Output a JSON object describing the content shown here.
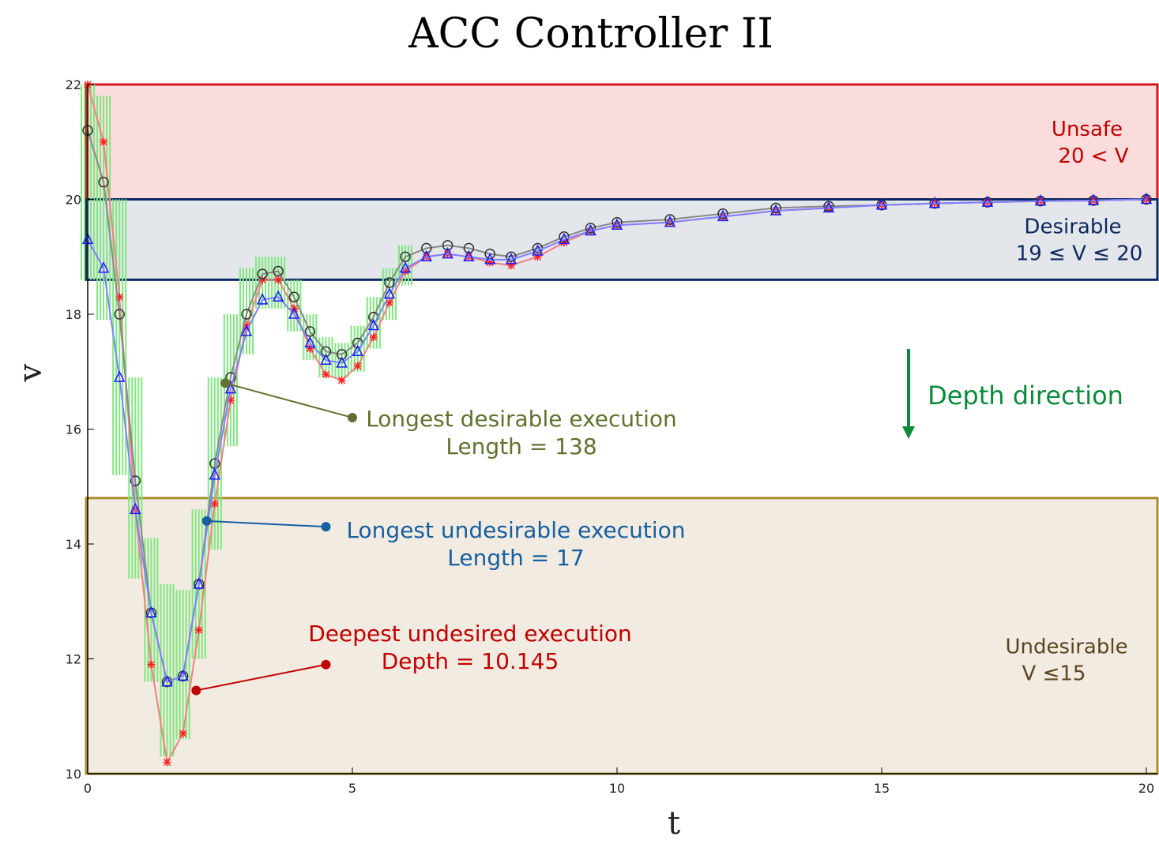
{
  "chart_data": {
    "type": "line",
    "title": "ACC Controller II",
    "xlabel": "t",
    "ylabel": "v",
    "xlim": [
      0,
      20
    ],
    "ylim": [
      10,
      22
    ],
    "x_ticks": [
      0,
      5,
      10,
      15,
      20
    ],
    "y_ticks": [
      10,
      12,
      14,
      16,
      18,
      20,
      22
    ],
    "grid": false,
    "regions": [
      {
        "name": "unsafe",
        "label": "Unsafe",
        "condition": "20 <  V",
        "y_range": [
          20,
          22
        ],
        "fill": "#f9dcdb",
        "border": "#d8141e",
        "text_color": "#c00000"
      },
      {
        "name": "desirable",
        "label": "Desirable",
        "condition": "19 ≤ V  ≤  20",
        "y_range": [
          18.6,
          20
        ],
        "fill": "#e3e6eb",
        "border": "#0b2a63",
        "text_color": "#10285e"
      },
      {
        "name": "undesirable",
        "label": "Undesirable",
        "condition": "V  ≤15",
        "y_range": [
          10,
          14.8
        ],
        "fill": "#f2ebe1",
        "border": "#a68f2c",
        "text_color": "#5a4620"
      }
    ],
    "series": [
      {
        "name": "",
        "marker": "star",
        "color": "#ff2020",
        "line_color": "#f08080",
        "x": [
          0,
          0.3,
          0.6,
          0.9,
          1.2,
          1.5,
          1.8,
          2.1,
          2.4,
          2.7,
          3.0,
          3.3,
          3.6,
          3.9,
          4.2,
          4.5,
          4.8,
          5.1,
          5.4,
          5.7,
          6.0,
          6.4,
          6.8,
          7.2,
          7.6,
          8.0,
          8.5,
          9.0,
          9.5,
          10.0,
          11.0,
          12.0,
          13.0,
          14.0,
          15.0,
          16.0,
          17.0,
          18.0,
          19.0,
          20.0
        ],
        "y": [
          22.0,
          21.0,
          18.3,
          14.6,
          11.9,
          10.2,
          10.7,
          12.5,
          14.7,
          16.5,
          17.8,
          18.6,
          18.6,
          18.1,
          17.4,
          16.95,
          16.85,
          17.1,
          17.6,
          18.2,
          18.75,
          19.0,
          19.05,
          19.0,
          18.9,
          18.85,
          19.0,
          19.25,
          19.45,
          19.55,
          19.6,
          19.7,
          19.8,
          19.85,
          19.9,
          19.93,
          19.95,
          19.97,
          19.98,
          20.0
        ]
      },
      {
        "name": "",
        "marker": "circle",
        "color": "#333333",
        "line_color": "#888888",
        "x": [
          0,
          0.3,
          0.6,
          0.9,
          1.2,
          1.5,
          1.8,
          2.1,
          2.4,
          2.7,
          3.0,
          3.3,
          3.6,
          3.9,
          4.2,
          4.5,
          4.8,
          5.1,
          5.4,
          5.7,
          6.0,
          6.4,
          6.8,
          7.2,
          7.6,
          8.0,
          8.5,
          9.0,
          9.5,
          10.0,
          11.0,
          12.0,
          13.0,
          14.0,
          15.0,
          16.0,
          17.0,
          18.0,
          19.0,
          20.0
        ],
        "y": [
          21.2,
          20.3,
          18.0,
          15.1,
          12.8,
          11.6,
          11.7,
          13.3,
          15.4,
          16.9,
          18.0,
          18.7,
          18.75,
          18.3,
          17.7,
          17.35,
          17.3,
          17.5,
          17.95,
          18.55,
          19.0,
          19.15,
          19.2,
          19.15,
          19.05,
          19.0,
          19.15,
          19.35,
          19.5,
          19.6,
          19.65,
          19.75,
          19.85,
          19.88,
          19.9,
          19.93,
          19.95,
          19.97,
          19.98,
          20.0
        ]
      },
      {
        "name": "",
        "marker": "triangle",
        "color": "#1a1aff",
        "line_color": "#8080ff",
        "x": [
          0,
          0.3,
          0.6,
          0.9,
          1.2,
          1.5,
          1.8,
          2.1,
          2.4,
          2.7,
          3.0,
          3.3,
          3.6,
          3.9,
          4.2,
          4.5,
          4.8,
          5.1,
          5.4,
          5.7,
          6.0,
          6.4,
          6.8,
          7.2,
          7.6,
          8.0,
          8.5,
          9.0,
          9.5,
          10.0,
          11.0,
          12.0,
          13.0,
          14.0,
          15.0,
          16.0,
          17.0,
          18.0,
          19.0,
          20.0
        ],
        "y": [
          19.3,
          18.8,
          16.9,
          14.6,
          12.8,
          11.6,
          11.7,
          13.3,
          15.2,
          16.7,
          17.7,
          18.25,
          18.3,
          18.0,
          17.5,
          17.2,
          17.15,
          17.35,
          17.8,
          18.35,
          18.8,
          19.0,
          19.05,
          19.0,
          18.95,
          18.95,
          19.1,
          19.3,
          19.45,
          19.55,
          19.6,
          19.7,
          19.8,
          19.85,
          19.9,
          19.93,
          19.95,
          19.97,
          19.98,
          20.0
        ]
      }
    ],
    "error_bars": {
      "color": "#7fe87f",
      "x": [
        0,
        0.3,
        0.6,
        0.9,
        1.2,
        1.5,
        1.8,
        2.1,
        2.4,
        2.7,
        3.0,
        3.3,
        3.6,
        3.9,
        4.2,
        4.5,
        4.8,
        5.1,
        5.4,
        5.7,
        6.0
      ],
      "low": [
        18.6,
        17.9,
        15.2,
        13.4,
        11.6,
        10.3,
        10.6,
        12.0,
        13.9,
        15.7,
        17.3,
        18.1,
        18.1,
        17.7,
        17.2,
        16.9,
        16.9,
        17.0,
        17.4,
        17.9,
        18.5
      ],
      "high": [
        22.0,
        21.8,
        20.0,
        16.9,
        14.1,
        13.3,
        13.2,
        14.6,
        16.9,
        18.0,
        18.8,
        19.0,
        19.0,
        18.6,
        18.0,
        17.6,
        17.5,
        17.8,
        18.3,
        18.8,
        19.2
      ]
    },
    "annotations": [
      {
        "name": "longest-desirable",
        "text_lines": [
          "Longest desirable execution",
          "Length = 138"
        ],
        "color": "#5f722e",
        "point": [
          2.6,
          16.8
        ],
        "anchor": [
          5.0,
          16.2
        ]
      },
      {
        "name": "longest-undesirable",
        "text_lines": [
          "Longest undesirable execution",
          "Length = 17"
        ],
        "color": "#165fa0",
        "point": [
          2.25,
          14.4
        ],
        "anchor": [
          4.5,
          14.3
        ]
      },
      {
        "name": "deepest-undesired",
        "text_lines": [
          "Deepest undesired execution",
          "Depth = 10.145"
        ],
        "color": "#c00000",
        "point": [
          2.05,
          11.45
        ],
        "anchor": [
          4.5,
          11.9
        ]
      }
    ],
    "depth_arrow": {
      "label": "Depth direction",
      "color": "#0a8a3a"
    }
  }
}
